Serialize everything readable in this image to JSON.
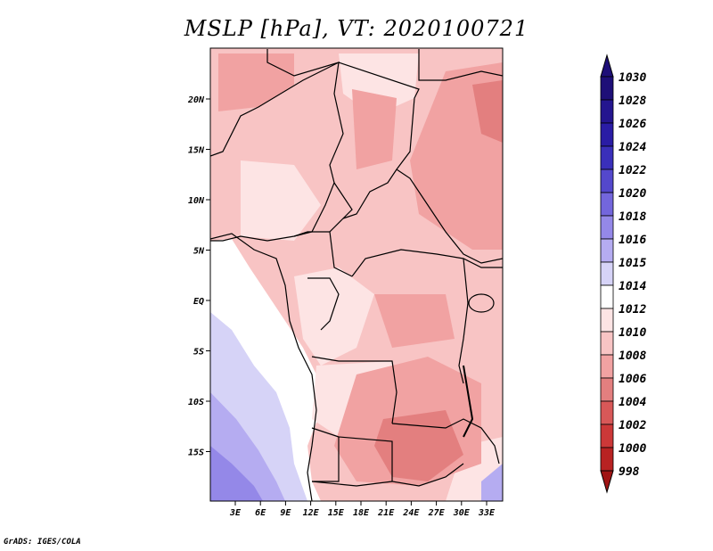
{
  "title": "MSLP [hPa], VT: 2020100721",
  "credit": "GrADS: IGES/COLA",
  "map": {
    "variable": "MSLP",
    "units": "hPa",
    "valid_time": "2020100721",
    "lat_labels": [
      "20N",
      "15N",
      "10N",
      "5N",
      "EQ",
      "5S",
      "10S",
      "15S"
    ],
    "lon_labels": [
      "3E",
      "6E",
      "9E",
      "12E",
      "15E",
      "18E",
      "21E",
      "24E",
      "27E",
      "30E",
      "33E"
    ]
  },
  "colorbar": {
    "levels": [
      {
        "label": "1030",
        "color": "#1e0f78"
      },
      {
        "label": "1028",
        "color": "#24158f"
      },
      {
        "label": "1026",
        "color": "#2a1ca5"
      },
      {
        "label": "1024",
        "color": "#3a2fba"
      },
      {
        "label": "1022",
        "color": "#5448cc"
      },
      {
        "label": "1020",
        "color": "#7366dc"
      },
      {
        "label": "1018",
        "color": "#9488e8"
      },
      {
        "label": "1016",
        "color": "#b5acf1"
      },
      {
        "label": "1015",
        "color": "#d6d3f7"
      },
      {
        "label": "1014",
        "color": "#ffffff"
      },
      {
        "label": "1012",
        "color": "#fde4e4"
      },
      {
        "label": "1010",
        "color": "#f8c4c4"
      },
      {
        "label": "1008",
        "color": "#f1a2a2"
      },
      {
        "label": "1006",
        "color": "#e37f7f"
      },
      {
        "label": "1004",
        "color": "#d85858"
      },
      {
        "label": "1002",
        "color": "#cc3838"
      },
      {
        "label": "1000",
        "color": "#b82222"
      },
      {
        "label": "998",
        "color": "#a01414"
      }
    ],
    "top_color": "#1e0f78",
    "bottom_color": "#a01414"
  }
}
